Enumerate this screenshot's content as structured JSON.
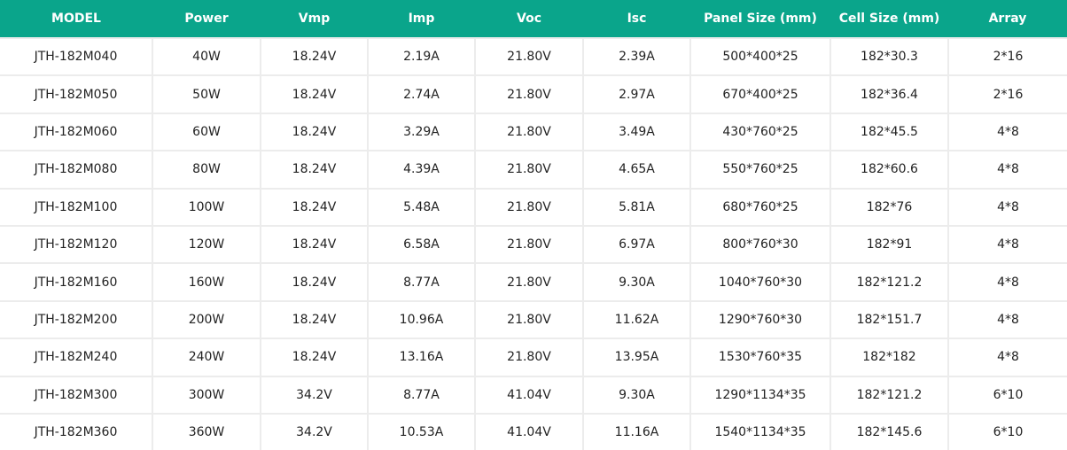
{
  "table": {
    "header": [
      "MODEL",
      "Power",
      "Vmp",
      "Imp",
      "Voc",
      "Isc",
      "Panel Size (mm)",
      "Cell Size (mm)",
      "Array"
    ],
    "rows": [
      [
        "JTH-182M040",
        "40W",
        "18.24V",
        "2.19A",
        "21.80V",
        "2.39A",
        "500*400*25",
        "182*30.3",
        "2*16"
      ],
      [
        "JTH-182M050",
        "50W",
        "18.24V",
        "2.74A",
        "21.80V",
        "2.97A",
        "670*400*25",
        "182*36.4",
        "2*16"
      ],
      [
        "JTH-182M060",
        "60W",
        "18.24V",
        "3.29A",
        "21.80V",
        "3.49A",
        "430*760*25",
        "182*45.5",
        "4*8"
      ],
      [
        "JTH-182M080",
        "80W",
        "18.24V",
        "4.39A",
        "21.80V",
        "4.65A",
        "550*760*25",
        "182*60.6",
        "4*8"
      ],
      [
        "JTH-182M100",
        "100W",
        "18.24V",
        "5.48A",
        "21.80V",
        "5.81A",
        "680*760*25",
        "182*76",
        "4*8"
      ],
      [
        "JTH-182M120",
        "120W",
        "18.24V",
        "6.58A",
        "21.80V",
        "6.97A",
        "800*760*30",
        "182*91",
        "4*8"
      ],
      [
        "JTH-182M160",
        "160W",
        "18.24V",
        "8.77A",
        "21.80V",
        "9.30A",
        "1040*760*30",
        "182*121.2",
        "4*8"
      ],
      [
        "JTH-182M200",
        "200W",
        "18.24V",
        "10.96A",
        "21.80V",
        "11.62A",
        "1290*760*30",
        "182*151.7",
        "4*8"
      ],
      [
        "JTH-182M240",
        "240W",
        "18.24V",
        "13.16A",
        "21.80V",
        "13.95A",
        "1530*760*35",
        "182*182",
        "4*8"
      ],
      [
        "JTH-182M300",
        "300W",
        "34.2V",
        "8.77A",
        "41.04V",
        "9.30A",
        "1290*1134*35",
        "182*121.2",
        "6*10"
      ],
      [
        "JTH-182M360",
        "360W",
        "34.2V",
        "10.53A",
        "41.04V",
        "11.16A",
        "1540*1134*35",
        "182*145.6",
        "6*10"
      ]
    ]
  }
}
